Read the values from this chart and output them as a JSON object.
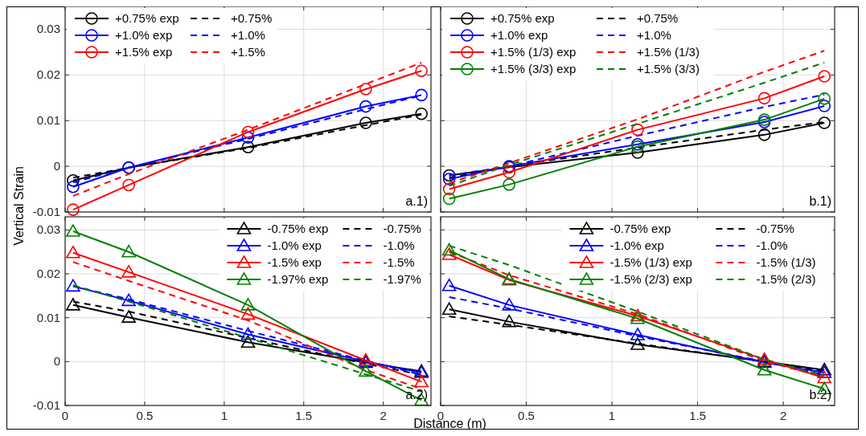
{
  "chart_data": [
    {
      "type": "line",
      "ylabel": "Vertical Strain",
      "xlim": [
        0,
        2.3
      ],
      "ylim": [
        -0.01,
        0.035
      ],
      "xticks": [
        0,
        0.5,
        1,
        1.5,
        2
      ],
      "yticks": [
        -0.01,
        0,
        0.01,
        0.02,
        0.03
      ],
      "grid": true,
      "legend": "top left",
      "tick_labels": "y",
      "annotations": [
        "a.1)"
      ],
      "x": [
        0.05,
        0.4,
        1.15,
        1.89,
        2.24
      ],
      "series": [
        {
          "name": "+0.75% exp",
          "color": "#000000",
          "marker": "circle",
          "line_style": "solid",
          "values": [
            -0.0031,
            -0.0003,
            0.0042,
            0.0095,
            0.0115
          ]
        },
        {
          "name": "+0.75%",
          "color": "#000000",
          "marker": "none",
          "line_style": "dashed",
          "values": [
            -0.0025,
            -0.0003,
            0.004,
            0.009,
            0.0113
          ]
        },
        {
          "name": "+1.0% exp",
          "color": "#0000ff",
          "marker": "circle",
          "line_style": "solid",
          "values": [
            -0.0045,
            -0.0003,
            0.0063,
            0.0131,
            0.0156
          ]
        },
        {
          "name": "+1.0%",
          "color": "#0000ff",
          "marker": "none",
          "line_style": "dashed",
          "values": [
            -0.0035,
            -0.0003,
            0.006,
            0.0125,
            0.0155
          ]
        },
        {
          "name": "+1.5% exp",
          "color": "#ff0000",
          "marker": "circle",
          "line_style": "solid",
          "values": [
            -0.0095,
            -0.0041,
            0.0075,
            0.0169,
            0.0209
          ]
        },
        {
          "name": "+1.5%",
          "color": "#ff0000",
          "marker": "none",
          "line_style": "dashed",
          "values": [
            -0.0065,
            -0.0017,
            0.008,
            0.018,
            0.0227
          ]
        }
      ]
    },
    {
      "type": "line",
      "xlim": [
        0,
        2.3
      ],
      "ylim": [
        -0.01,
        0.035
      ],
      "xticks": [
        0,
        0.5,
        1,
        1.5,
        2
      ],
      "yticks": [
        -0.01,
        0,
        0.01,
        0.02,
        0.03
      ],
      "grid": true,
      "legend": "top left",
      "tick_labels": false,
      "annotations": [
        "b.1)"
      ],
      "x": [
        0.05,
        0.4,
        1.15,
        1.89,
        2.24
      ],
      "series": [
        {
          "name": "+0.75% exp",
          "color": "#000000",
          "marker": "circle",
          "line_style": "solid",
          "values": [
            -0.002,
            -0.0002,
            0.003,
            0.0069,
            0.0095
          ]
        },
        {
          "name": "+0.75%",
          "color": "#000000",
          "marker": "none",
          "line_style": "dashed",
          "values": [
            -0.0025,
            0,
            0.0041,
            0.008,
            0.0097
          ]
        },
        {
          "name": "+1.0% exp",
          "color": "#0000ff",
          "marker": "circle",
          "line_style": "solid",
          "values": [
            -0.0028,
            0,
            0.0048,
            0.0097,
            0.0132
          ]
        },
        {
          "name": "+1.0%",
          "color": "#0000ff",
          "marker": "none",
          "line_style": "dashed",
          "values": [
            -0.002,
            0,
            0.0067,
            0.013,
            0.0157
          ]
        },
        {
          "name": "+1.5% (1/3) exp",
          "color": "#ff0000",
          "marker": "circle",
          "line_style": "solid",
          "values": [
            -0.005,
            -0.0013,
            0.008,
            0.0149,
            0.0197
          ]
        },
        {
          "name": "+1.5% (1/3)",
          "color": "#ff0000",
          "marker": "none",
          "line_style": "dashed",
          "values": [
            -0.0037,
            0.0007,
            0.0103,
            0.0207,
            0.0253
          ]
        },
        {
          "name": "+1.5% (3/3) exp",
          "color": "#008000",
          "marker": "circle",
          "line_style": "solid",
          "values": [
            -0.0071,
            -0.004,
            0.0043,
            0.0102,
            0.0148
          ]
        },
        {
          "name": "+1.5% (3/3)",
          "color": "#008000",
          "marker": "none",
          "line_style": "dashed",
          "values": [
            -0.0043,
            0.0003,
            0.0093,
            0.0183,
            0.0227
          ]
        }
      ]
    },
    {
      "type": "line",
      "xlabel": "Distance (m)",
      "xlim": [
        0,
        2.3
      ],
      "ylim": [
        -0.01,
        0.033
      ],
      "xticks": [
        0,
        0.5,
        1,
        1.5,
        2
      ],
      "yticks": [
        -0.01,
        0,
        0.01,
        0.02,
        0.03
      ],
      "grid": true,
      "legend": "top right",
      "annotations": [
        "a.2)"
      ],
      "x": [
        0.05,
        0.4,
        1.15,
        1.89,
        2.24
      ],
      "series": [
        {
          "name": "-0.75% exp",
          "color": "#000000",
          "marker": "triangle",
          "line_style": "solid",
          "values": [
            0.0129,
            0.0101,
            0.0044,
            -0.0002,
            -0.0022
          ]
        },
        {
          "name": "-0.75%",
          "color": "#000000",
          "marker": "none",
          "line_style": "dashed",
          "values": [
            0.0137,
            0.0114,
            0.0054,
            -0.0005,
            -0.003
          ]
        },
        {
          "name": "-1.0% exp",
          "color": "#0000ff",
          "marker": "triangle",
          "line_style": "solid",
          "values": [
            0.0172,
            0.0139,
            0.0062,
            0,
            -0.0025
          ]
        },
        {
          "name": "-1.0%",
          "color": "#0000ff",
          "marker": "none",
          "line_style": "dashed",
          "values": [
            0.0172,
            0.0142,
            0.007,
            0.0002,
            -0.003
          ]
        },
        {
          "name": "-1.5% exp",
          "color": "#ff0000",
          "marker": "triangle",
          "line_style": "solid",
          "values": [
            0.0248,
            0.0204,
            0.0108,
            0.0003,
            -0.0046
          ]
        },
        {
          "name": "-1.5%",
          "color": "#ff0000",
          "marker": "none",
          "line_style": "dashed",
          "values": [
            0.0227,
            0.0184,
            0.0094,
            -0.0019,
            -0.0062
          ]
        },
        {
          "name": "-1.97% exp",
          "color": "#008000",
          "marker": "triangle",
          "line_style": "solid",
          "values": [
            0.0297,
            0.025,
            0.0129,
            -0.0022,
            -0.0088
          ]
        },
        {
          "name": "-1.97%",
          "color": "#008000",
          "marker": "none",
          "line_style": "dashed",
          "values": [
            0.0174,
            0.0137,
            0.0054,
            -0.0029,
            -0.0068
          ]
        }
      ]
    },
    {
      "type": "line",
      "xlim": [
        0,
        2.3
      ],
      "ylim": [
        -0.01,
        0.033
      ],
      "xticks": [
        0,
        0.5,
        1,
        1.5,
        2
      ],
      "yticks": [
        -0.01,
        0,
        0.01,
        0.02,
        0.03
      ],
      "grid": true,
      "legend": "top right",
      "tick_labels": "x",
      "annotations": [
        "b.2)"
      ],
      "x": [
        0.05,
        0.4,
        1.15,
        1.89,
        2.24
      ],
      "series": [
        {
          "name": "-0.75% exp",
          "color": "#000000",
          "marker": "triangle",
          "line_style": "solid",
          "values": [
            0.0119,
            0.0091,
            0.0039,
            0,
            -0.0019
          ]
        },
        {
          "name": "-0.75%",
          "color": "#000000",
          "marker": "none",
          "line_style": "dashed",
          "values": [
            0.0103,
            0.0084,
            0.0041,
            0,
            -0.0022
          ]
        },
        {
          "name": "-1.0% exp",
          "color": "#0000ff",
          "marker": "triangle",
          "line_style": "solid",
          "values": [
            0.0173,
            0.0129,
            0.0061,
            -0.0002,
            -0.0025
          ]
        },
        {
          "name": "-1.0%",
          "color": "#0000ff",
          "marker": "none",
          "line_style": "dashed",
          "values": [
            0.0147,
            0.0121,
            0.0058,
            0,
            -0.003
          ]
        },
        {
          "name": "-1.5% (1/3) exp",
          "color": "#ff0000",
          "marker": "triangle",
          "line_style": "solid",
          "values": [
            0.0244,
            0.0186,
            0.0104,
            0.0005,
            -0.0037
          ]
        },
        {
          "name": "-1.5% (1/3)",
          "color": "#ff0000",
          "marker": "none",
          "line_style": "dashed",
          "values": [
            0.025,
            0.0197,
            0.0108,
            0.0001,
            -0.0035
          ]
        },
        {
          "name": "-1.5% (2/3) exp",
          "color": "#008000",
          "marker": "triangle",
          "line_style": "solid",
          "values": [
            0.0254,
            0.0188,
            0.0098,
            -0.0019,
            -0.0062
          ]
        },
        {
          "name": "-1.5% (2/3)",
          "color": "#008000",
          "marker": "none",
          "line_style": "dashed",
          "values": [
            0.0264,
            0.022,
            0.0114,
            0.0005,
            -0.0032
          ]
        }
      ]
    }
  ]
}
